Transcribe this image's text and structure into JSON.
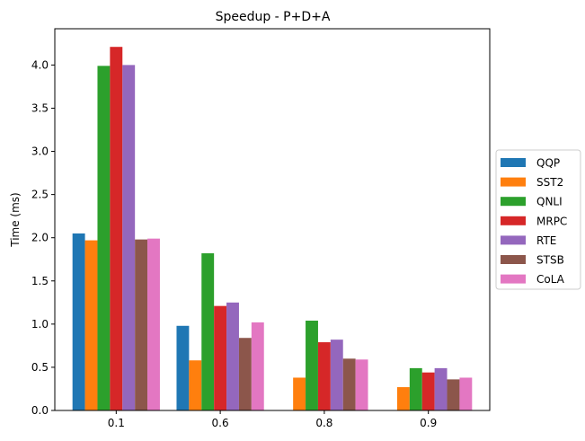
{
  "chart_data": {
    "type": "bar",
    "title": "Speedup - P+D+A",
    "xlabel": "",
    "ylabel": "Time (ms)",
    "categories": [
      "0.1",
      "0.6",
      "0.8",
      "0.9"
    ],
    "ylim": [
      0,
      4.42
    ],
    "yticks": [
      "0.0",
      "0.5",
      "1.0",
      "1.5",
      "2.0",
      "2.5",
      "3.0",
      "3.5",
      "4.0"
    ],
    "grid": false,
    "legend_position": "center-right outside",
    "series": [
      {
        "name": "QQP",
        "color": "#1f77b4",
        "values": [
          2.05,
          0.98,
          0.0,
          0.0
        ]
      },
      {
        "name": "SST2",
        "color": "#ff7f0e",
        "values": [
          1.97,
          0.58,
          0.38,
          0.27
        ]
      },
      {
        "name": "QNLI",
        "color": "#2ca02c",
        "values": [
          3.99,
          1.82,
          1.04,
          0.49
        ]
      },
      {
        "name": "MRPC",
        "color": "#d62728",
        "values": [
          4.21,
          1.21,
          0.79,
          0.44
        ]
      },
      {
        "name": "RTE",
        "color": "#9467bd",
        "values": [
          4.0,
          1.25,
          0.82,
          0.49
        ]
      },
      {
        "name": "STSB",
        "color": "#8c564b",
        "values": [
          1.98,
          0.84,
          0.6,
          0.36
        ]
      },
      {
        "name": "CoLA",
        "color": "#e377c2",
        "values": [
          1.99,
          1.02,
          0.59,
          0.38
        ]
      }
    ]
  }
}
